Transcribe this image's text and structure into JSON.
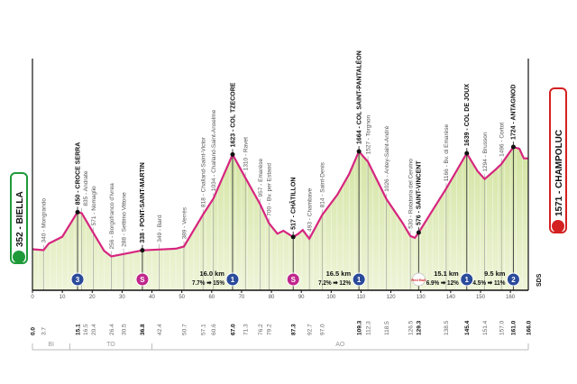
{
  "chart_data": {
    "type": "area",
    "title": "",
    "xlabel": "",
    "ylabel": "",
    "xlim": [
      0,
      166
    ],
    "x_ticks": [
      0,
      10,
      20,
      30,
      40,
      50,
      60,
      70,
      80,
      90,
      100,
      110,
      120,
      130,
      140,
      150,
      160
    ],
    "start": {
      "label": "352 - BIELLA",
      "elevation": 352,
      "km": 0
    },
    "finish": {
      "label": "1571 - CHAMPOLUC",
      "elevation": 1571,
      "km": 166
    },
    "profile": [
      [
        0,
        352
      ],
      [
        3.7,
        340
      ],
      [
        5.5,
        430
      ],
      [
        10,
        520
      ],
      [
        15.1,
        850
      ],
      [
        16.5,
        835
      ],
      [
        20.4,
        571
      ],
      [
        24,
        330
      ],
      [
        26.4,
        256
      ],
      [
        30.5,
        288
      ],
      [
        36.8,
        338
      ],
      [
        42.4,
        349
      ],
      [
        48,
        360
      ],
      [
        50.7,
        389
      ],
      [
        57.1,
        818
      ],
      [
        60.6,
        1034
      ],
      [
        67.0,
        1623
      ],
      [
        71.3,
        1310
      ],
      [
        76.2,
        957
      ],
      [
        79.2,
        700
      ],
      [
        82,
        560
      ],
      [
        84,
        600
      ],
      [
        87.3,
        517
      ],
      [
        89,
        560
      ],
      [
        90.5,
        610
      ],
      [
        92.7,
        493
      ],
      [
        97.0,
        814
      ],
      [
        102,
        1080
      ],
      [
        106,
        1360
      ],
      [
        109.3,
        1664
      ],
      [
        112.3,
        1527
      ],
      [
        118.5,
        1026
      ],
      [
        124,
        700
      ],
      [
        126.5,
        530
      ],
      [
        128,
        505
      ],
      [
        129.3,
        576
      ],
      [
        134,
        880
      ],
      [
        138.5,
        1166
      ],
      [
        145.4,
        1639
      ],
      [
        149,
        1400
      ],
      [
        151.4,
        1294
      ],
      [
        155,
        1420
      ],
      [
        157.0,
        1496
      ],
      [
        161.0,
        1724
      ],
      [
        163,
        1700
      ],
      [
        164.5,
        1571
      ],
      [
        166,
        1571
      ]
    ],
    "waypoints": [
      {
        "km": "0.0",
        "label": "",
        "bold": true
      },
      {
        "km": "3.7",
        "label": "340 - Mongrando"
      },
      {
        "km": "15.1",
        "label": "850 - CROCE SERRA",
        "bold": true,
        "dot": true
      },
      {
        "km": "16.5",
        "label": "835 - Andrate"
      },
      {
        "km": "20.4",
        "label": "571 - Nomaglio"
      },
      {
        "km": "26.4",
        "label": "256 - Borgofranco d'Ivrea"
      },
      {
        "km": "30.5",
        "label": "288 - Settimo Vittone"
      },
      {
        "km": "36.8",
        "label": "338 - PONT-SAINT-MARTIN",
        "bold": true,
        "dot": true
      },
      {
        "km": "42.4",
        "label": "349 - Bard"
      },
      {
        "km": "50.7",
        "label": "389 - Verrès"
      },
      {
        "km": "57.1",
        "label": "818 - Challand-Saint-Victor"
      },
      {
        "km": "60.6",
        "label": "1034 - Challand-Saint-Anselme"
      },
      {
        "km": "67.0",
        "label": "1623 - COL TZECORE",
        "bold": true,
        "dot": true
      },
      {
        "km": "71.3",
        "label": "1310 - Ravet"
      },
      {
        "km": "76.2",
        "label": "957 - Emarèse"
      },
      {
        "km": "79.2",
        "label": "700 - Bv. per Estaod"
      },
      {
        "km": "87.3",
        "label": "517 - CHÂTILLON",
        "bold": true,
        "dot": true
      },
      {
        "km": "92.7",
        "label": "493 - Chambave"
      },
      {
        "km": "97.0",
        "label": "814 - Saint-Denis"
      },
      {
        "km": "109.3",
        "label": "1664 - COL SAINT-PANTALÉON",
        "bold": true,
        "dot": true
      },
      {
        "km": "112.3",
        "label": "1527 - Torgnon"
      },
      {
        "km": "118.5",
        "label": "1026 - Antey-Saint-André"
      },
      {
        "km": "126.5",
        "label": "530 - Rotatoria del Cervino"
      },
      {
        "km": "129.3",
        "label": "576 - SAINT-VINCENT",
        "bold": true,
        "dot": true
      },
      {
        "km": "138.5",
        "label": "1166 - Bv. di Emarèse"
      },
      {
        "km": "145.4",
        "label": "1639 - COL DE JOUX",
        "bold": true,
        "dot": true
      },
      {
        "km": "151.4",
        "label": "1294 - Brusson"
      },
      {
        "km": "157.0",
        "label": "1496 - Cortot"
      },
      {
        "km": "161.0",
        "label": "1724 - ANTAGNOD",
        "bold": true,
        "dot": true
      },
      {
        "km": "166.0",
        "label": "",
        "bold": true
      }
    ],
    "badges": [
      {
        "km": 15.1,
        "type": "climb",
        "text": "3",
        "color": "#2a4a9a"
      },
      {
        "km": 36.8,
        "type": "sprint",
        "text": "S",
        "color": "#c0268b"
      },
      {
        "km": 67.0,
        "type": "climb",
        "text": "1",
        "color": "#2a4a9a"
      },
      {
        "km": 87.3,
        "type": "sprint",
        "text": "S",
        "color": "#c0268b"
      },
      {
        "km": 109.3,
        "type": "climb",
        "text": "1",
        "color": "#2a4a9a"
      },
      {
        "km": 129.3,
        "type": "redbull-km",
        "text": "Red Bull",
        "color": "#d42020"
      },
      {
        "km": 145.4,
        "type": "climb",
        "text": "1",
        "color": "#2a4a9a"
      },
      {
        "km": 161.0,
        "type": "climb",
        "text": "2",
        "color": "#2a4a9a"
      }
    ],
    "climb_info": [
      {
        "km": 60,
        "length": "16.0 km",
        "gradient": "7.7% ➡ 15%"
      },
      {
        "km": 101,
        "length": "16.5 km",
        "gradient": "7.2% ➡ 12%"
      },
      {
        "km": 139,
        "length": "15.1 km",
        "gradient": "6.9% ➡ 12%"
      },
      {
        "km": 155,
        "length": "9.5 km",
        "gradient": "4.5% ➡ 11%"
      }
    ],
    "regions": [
      {
        "label": "BI",
        "from": 0,
        "to": 12.5
      },
      {
        "label": "TO",
        "from": 12.5,
        "to": 40
      },
      {
        "label": "AO",
        "from": 40,
        "to": 166
      }
    ],
    "side_label": "SDS",
    "colors": {
      "profile": "#d6257f",
      "fill": "#d3e4a2",
      "fill_light": "#eef4d8",
      "start": "#1f9a3a",
      "finish": "#d42020"
    }
  }
}
